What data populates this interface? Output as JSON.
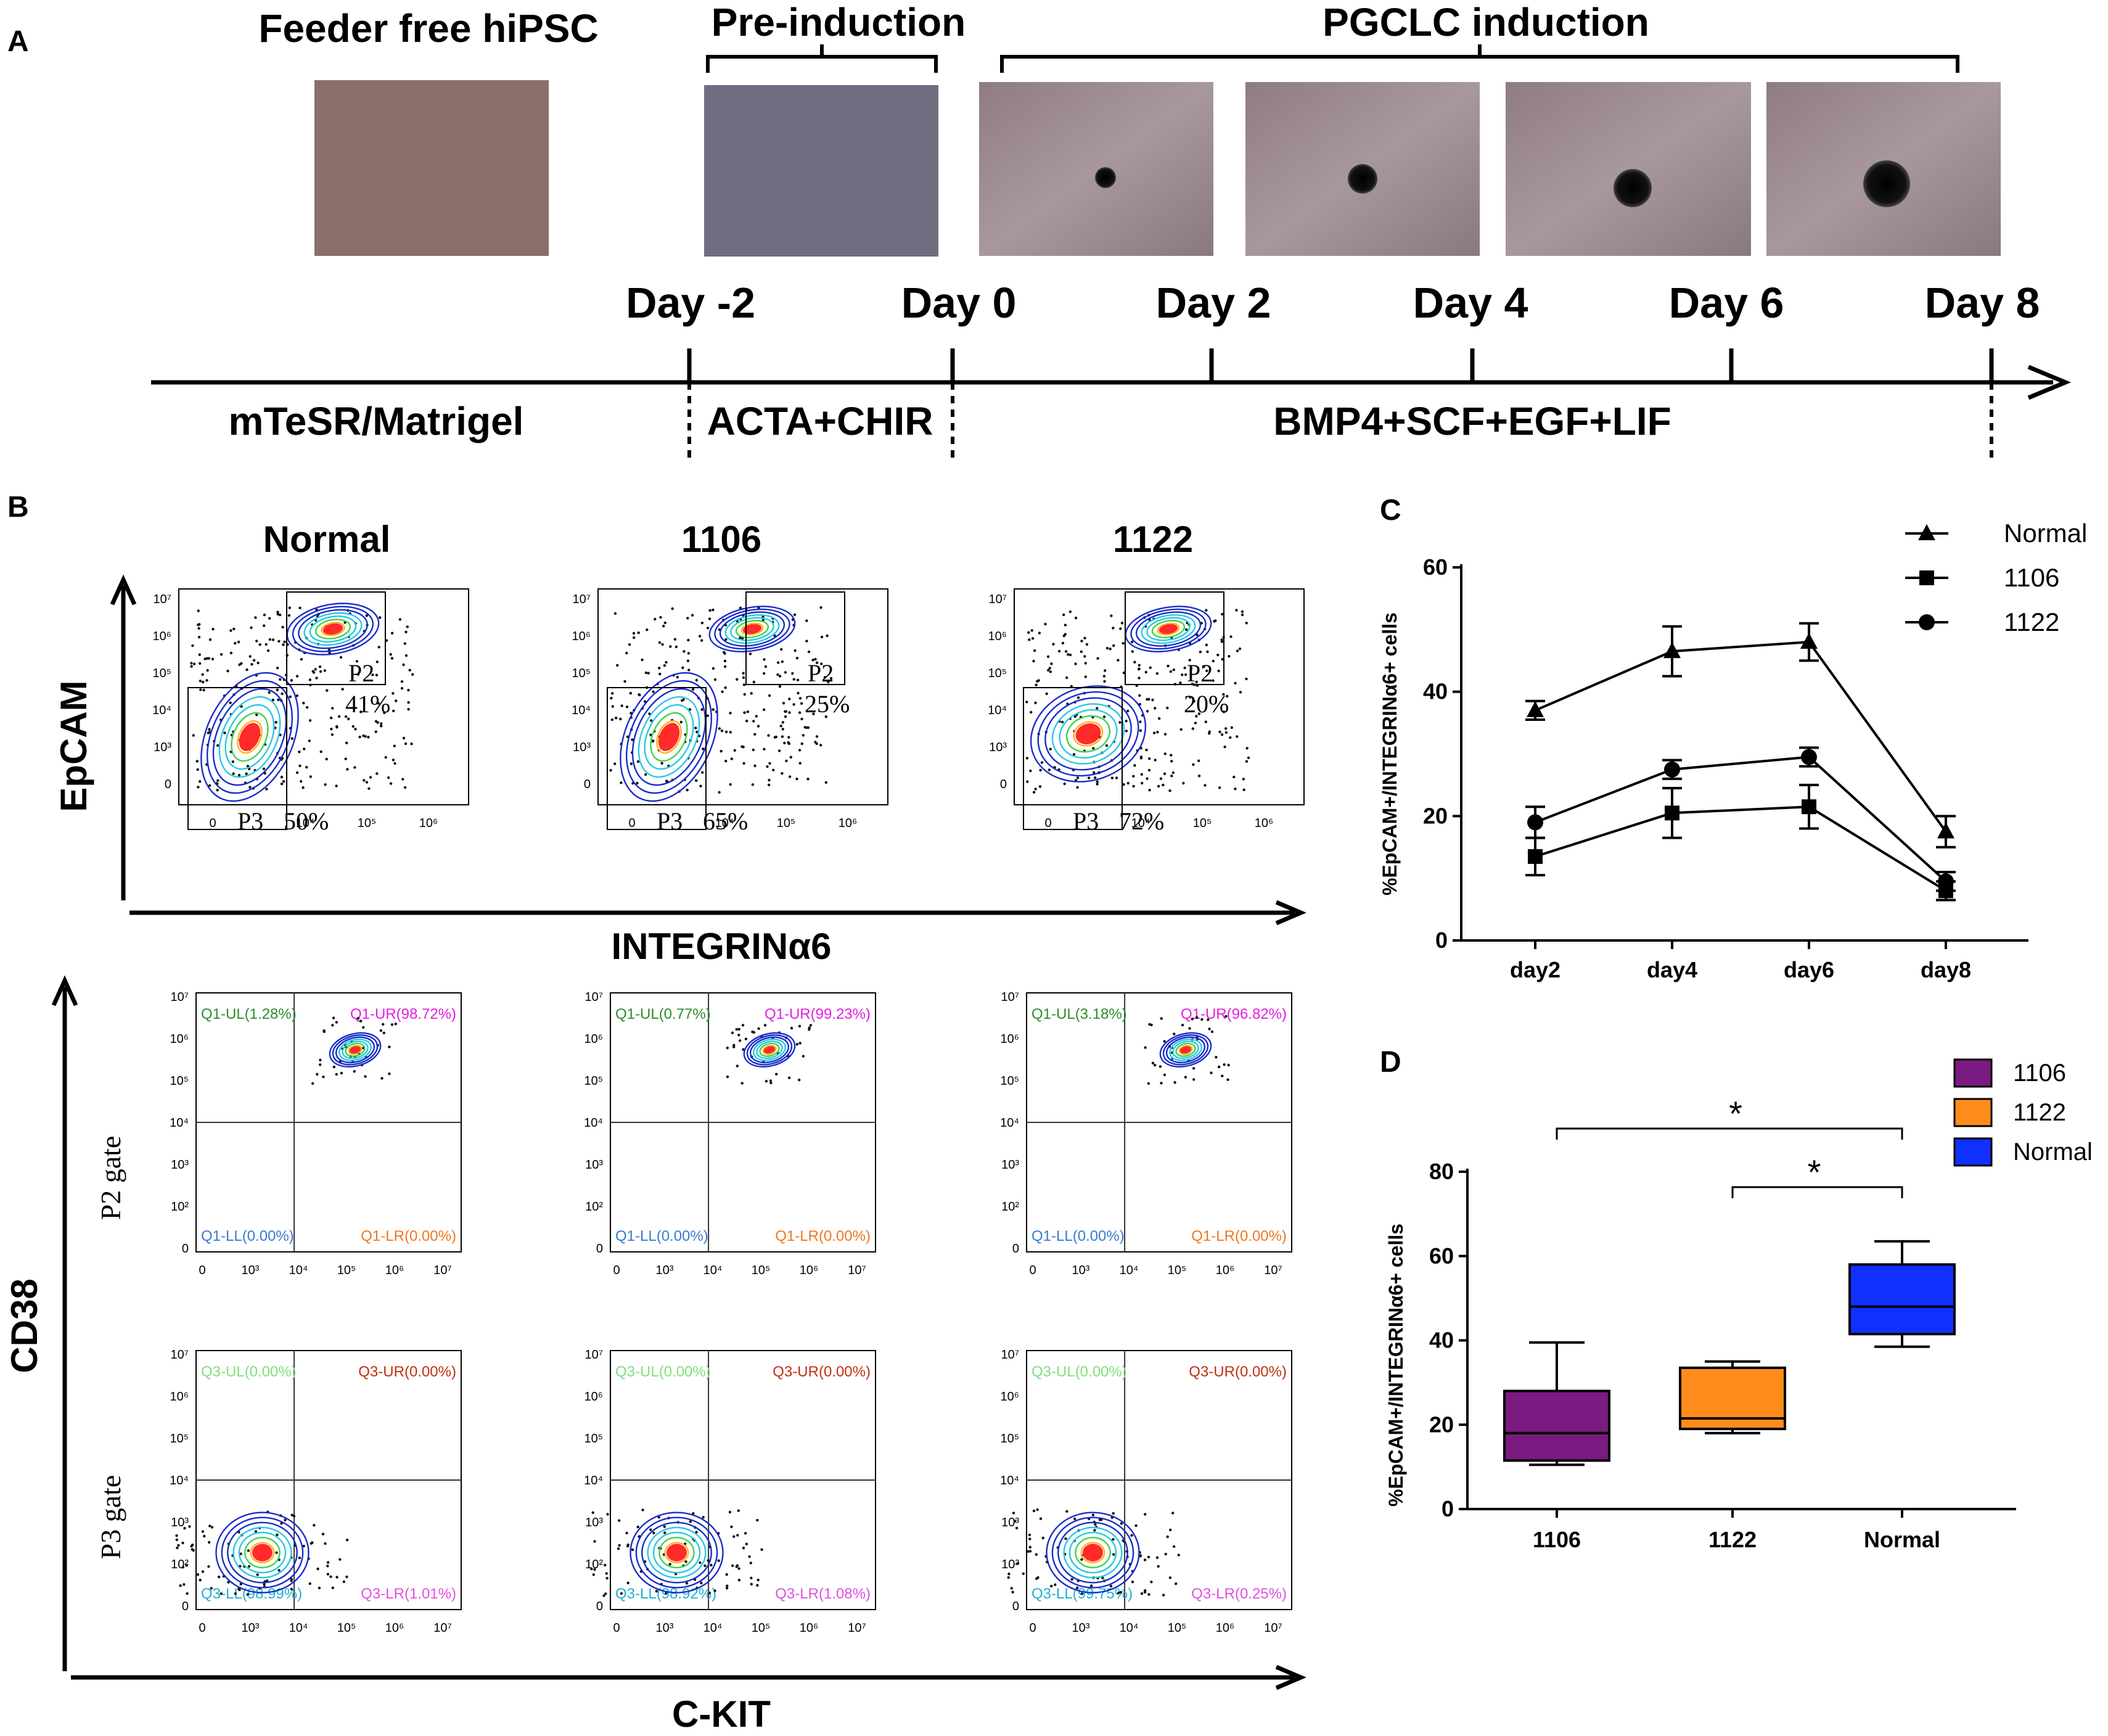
{
  "panel_a": {
    "letter": "A",
    "stage_labels": [
      "Feeder free hiPSC",
      "Pre-induction",
      "PGCLC induction"
    ],
    "days": [
      "Day -2",
      "Day 0",
      "Day 2",
      "Day 4",
      "Day 6",
      "Day 8"
    ],
    "media": [
      "mTeSR/Matrigel",
      "ACTA+CHIR",
      "BMP4+SCF+EGF+LIF"
    ]
  },
  "panel_b": {
    "letter": "B",
    "columns": [
      "Normal",
      "1106",
      "1122"
    ],
    "y_axis_top": "EpCAM",
    "x_axis_top": "INTEGRINα6",
    "y_axis_bottom": "CD38",
    "x_axis_bottom": "C-KIT",
    "row_labels": [
      "P2 gate",
      "P3 gate"
    ],
    "top_ticks_y": [
      "10⁷",
      "10⁶",
      "10⁵",
      "10⁴",
      "10³",
      "0"
    ],
    "top_ticks_x": [
      "0",
      "10⁴",
      "10⁵",
      "10⁶"
    ],
    "quad_ticks_y": [
      "10⁷",
      "10⁶",
      "10⁵",
      "10⁴",
      "10³",
      "10²",
      "0"
    ],
    "quad_ticks_x": [
      "0",
      "10³",
      "10⁴",
      "10⁵",
      "10⁶",
      "10⁷"
    ],
    "gates": [
      {
        "p2": "41%",
        "p3": "50%"
      },
      {
        "p2": "25%",
        "p3": "65%"
      },
      {
        "p2": "20%",
        "p3": "72%"
      }
    ],
    "gate_names": [
      "P2",
      "P3"
    ],
    "quadrants_p2": [
      [
        "Q1-UL(1.28%)",
        "Q1-UR(98.72%)",
        "Q1-LL(0.00%)",
        "Q1-LR(0.00%)"
      ],
      [
        "Q1-UL(0.77%)",
        "Q1-UR(99.23%)",
        "Q1-LL(0.00%)",
        "Q1-LR(0.00%)"
      ],
      [
        "Q1-UL(3.18%)",
        "Q1-UR(96.82%)",
        "Q1-LL(0.00%)",
        "Q1-LR(0.00%)"
      ]
    ],
    "quadrants_p3": [
      [
        "Q3-UL(0.00%)",
        "Q3-UR(0.00%)",
        "Q3-LL(98.99%)",
        "Q3-LR(1.01%)"
      ],
      [
        "Q3-UL(0.00%)",
        "Q3-UR(0.00%)",
        "Q3-LL(98.92%)",
        "Q3-LR(1.08%)"
      ],
      [
        "Q3-UL(0.00%)",
        "Q3-UR(0.00%)",
        "Q3-LL(99.75%)",
        "Q3-LR(0.25%)"
      ]
    ],
    "colors": {
      "ul_p2": "#2e8b2e",
      "ur_p2": "#e020e0",
      "ll_p2": "#3a7ad0",
      "lr_p2": "#f07820",
      "ul_p3": "#7ee07e",
      "ur_p3": "#c03010",
      "ll_p3": "#20b0d0",
      "lr_p3": "#e050e0"
    }
  },
  "chart_data": [
    {
      "panel": "C",
      "type": "line",
      "ylabel": "%EpCAM+/INTEGRINα6+ cells",
      "categories": [
        "day2",
        "day4",
        "day6",
        "day8"
      ],
      "ylim": [
        0,
        60
      ],
      "yticks": [
        "0",
        "20",
        "40",
        "60"
      ],
      "series": [
        {
          "name": "Normal",
          "marker": "triangle",
          "values": [
            37,
            46.5,
            48,
            17.5
          ],
          "errors": [
            1.5,
            4,
            3,
            2.5
          ]
        },
        {
          "name": "1106",
          "marker": "square",
          "values": [
            13.5,
            20.5,
            21.5,
            8
          ],
          "errors": [
            3,
            4,
            3.5,
            1.5
          ]
        },
        {
          "name": "1122",
          "marker": "circle",
          "values": [
            19,
            27.5,
            29.5,
            9.5
          ],
          "errors": [
            2.5,
            1.5,
            1.5,
            1.5
          ]
        }
      ]
    },
    {
      "panel": "D",
      "type": "box",
      "ylabel": "%EpCAM+/INTEGRINα6+ cells",
      "categories": [
        "1106",
        "1122",
        "Normal"
      ],
      "ylim": [
        0,
        80
      ],
      "yticks": [
        "0",
        "20",
        "40",
        "60",
        "80"
      ],
      "legend": [
        "1106",
        "1122",
        "Normal"
      ],
      "colors": [
        "#7b1a80",
        "#ff8c1a",
        "#1030ff"
      ],
      "boxes": [
        {
          "min": 10.5,
          "q1": 11.5,
          "median": 18,
          "q3": 28,
          "max": 39.5
        },
        {
          "min": 18,
          "q1": 19,
          "median": 21.5,
          "q3": 33.5,
          "max": 35
        },
        {
          "min": 38.5,
          "q1": 41.5,
          "median": 48,
          "q3": 58,
          "max": 63.5
        }
      ],
      "significance": [
        "*",
        "*"
      ]
    }
  ]
}
